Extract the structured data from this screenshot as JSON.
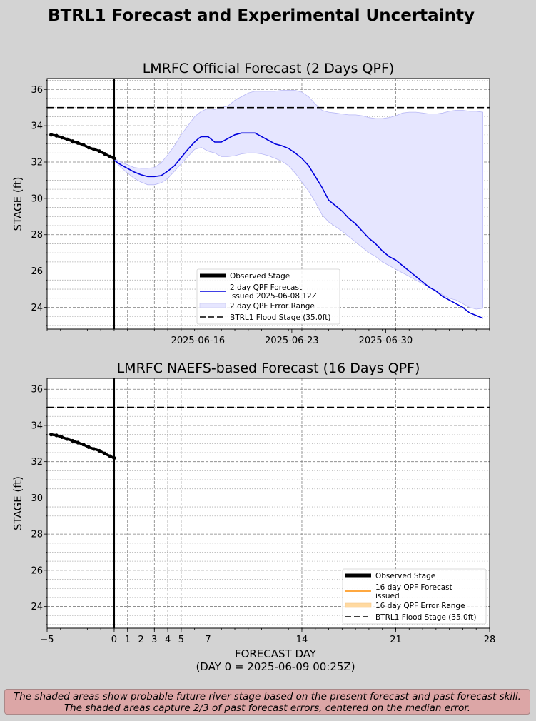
{
  "figure": {
    "title": "BTRL1 Forecast and Experimental Uncertainty",
    "footer_line1": "The shaded areas show probable future river stage based on the present forecast and past forecast skill.",
    "footer_line2": "The shaded areas capture 2/3 of past forecast errors, centered on the median error."
  },
  "colors": {
    "background": "#d3d3d3",
    "observed": "#000000",
    "forecast_2day": "#0000dd",
    "band_2day": "#e6e6ff",
    "forecast_16day": "#ff8c00",
    "band_16day": "#ffd9a0",
    "flood": "#000000",
    "footer_bg": "#dca6a6"
  },
  "chart_data": [
    {
      "type": "line",
      "title": "LMRFC Official Forecast (2 Days QPF)",
      "xlabel": "",
      "ylabel": "STAGE (ft)",
      "xlim": [
        -5,
        28
      ],
      "ylim": [
        22.8,
        36.6
      ],
      "yticks": [
        24,
        26,
        28,
        30,
        32,
        34,
        36
      ],
      "xticks": [
        {
          "x": 6.25,
          "label": "2025-06-16"
        },
        {
          "x": 13.25,
          "label": "2025-06-23"
        },
        {
          "x": 20.25,
          "label": "2025-06-30"
        }
      ],
      "forecast_day_lines": [
        1,
        2,
        3,
        4,
        5,
        7,
        14,
        21
      ],
      "now_line": 0,
      "grid": true,
      "flood_stage": 35.0,
      "legend_position": "lower-center",
      "series": [
        {
          "name": "Observed Stage",
          "role": "observed",
          "x": [
            -4.7,
            -4.3,
            -3.9,
            -3.5,
            -3.1,
            -2.7,
            -2.3,
            -1.9,
            -1.5,
            -1.1,
            -0.7,
            -0.3,
            0
          ],
          "y": [
            33.5,
            33.45,
            33.35,
            33.25,
            33.15,
            33.05,
            32.95,
            32.8,
            32.7,
            32.6,
            32.45,
            32.3,
            32.2
          ]
        },
        {
          "name": "2 day QPF Forecast",
          "name_line2": "issued 2025-06-08 12Z",
          "role": "forecast",
          "x": [
            0,
            0.5,
            1,
            1.5,
            2,
            2.5,
            3,
            3.5,
            4,
            4.5,
            5,
            5.5,
            6,
            6.3,
            6.5,
            7,
            7.5,
            8,
            8.5,
            9,
            9.5,
            10,
            10.5,
            11,
            11.5,
            12,
            12.5,
            13,
            13.5,
            14,
            14.5,
            15,
            15.5,
            16,
            16.5,
            17,
            17.5,
            18,
            18.5,
            19,
            19.5,
            20,
            20.5,
            21,
            21.5,
            22,
            22.5,
            23,
            23.5,
            24,
            24.5,
            25,
            25.5,
            26,
            26.5,
            27,
            27.5
          ],
          "y": [
            32.1,
            31.85,
            31.65,
            31.45,
            31.3,
            31.2,
            31.2,
            31.25,
            31.5,
            31.8,
            32.25,
            32.7,
            33.1,
            33.3,
            33.4,
            33.4,
            33.1,
            33.1,
            33.3,
            33.5,
            33.6,
            33.6,
            33.6,
            33.4,
            33.2,
            33.0,
            32.9,
            32.75,
            32.5,
            32.2,
            31.8,
            31.2,
            30.6,
            29.9,
            29.6,
            29.3,
            28.9,
            28.6,
            28.2,
            27.8,
            27.5,
            27.1,
            26.8,
            26.6,
            26.3,
            26.0,
            25.7,
            25.4,
            25.1,
            24.9,
            24.6,
            24.4,
            24.2,
            24.0,
            23.7,
            23.55,
            23.4
          ]
        },
        {
          "name": "2 day QPF Error Range",
          "role": "band",
          "x": [
            0,
            0.5,
            1,
            1.5,
            2,
            2.5,
            3,
            3.5,
            4,
            4.5,
            5,
            5.5,
            6,
            6.5,
            7,
            7.5,
            8,
            8.5,
            9,
            9.5,
            10,
            10.5,
            11,
            11.5,
            12,
            12.5,
            13,
            13.5,
            14,
            14.5,
            15,
            15.5,
            16,
            16.5,
            17,
            17.5,
            18,
            18.5,
            19,
            19.5,
            20,
            20.5,
            21,
            21.5,
            22,
            22.5,
            23,
            23.5,
            24,
            24.5,
            25,
            25.5,
            26,
            26.5,
            27,
            27.5
          ],
          "y_low": [
            32.1,
            31.7,
            31.4,
            31.1,
            30.9,
            30.75,
            30.75,
            30.85,
            31.1,
            31.5,
            31.9,
            32.3,
            32.7,
            32.8,
            32.6,
            32.5,
            32.3,
            32.3,
            32.35,
            32.45,
            32.5,
            32.5,
            32.45,
            32.35,
            32.2,
            32.05,
            31.8,
            31.4,
            30.9,
            30.4,
            29.8,
            29.1,
            28.7,
            28.45,
            28.2,
            27.9,
            27.6,
            27.3,
            27.0,
            26.8,
            26.5,
            26.3,
            26.1,
            25.9,
            25.7,
            25.5,
            25.3,
            25.1,
            24.9,
            24.7,
            24.5,
            24.4,
            24.2,
            24.0,
            23.9,
            23.95
          ],
          "y_high": [
            32.2,
            32.0,
            31.85,
            31.7,
            31.65,
            31.65,
            31.7,
            31.95,
            32.4,
            32.9,
            33.5,
            34.0,
            34.5,
            34.8,
            34.95,
            34.9,
            35.0,
            35.1,
            35.4,
            35.6,
            35.8,
            35.9,
            35.9,
            35.9,
            35.9,
            35.95,
            35.95,
            35.95,
            35.85,
            35.6,
            35.2,
            34.85,
            34.75,
            34.7,
            34.65,
            34.6,
            34.6,
            34.55,
            34.45,
            34.4,
            34.4,
            34.45,
            34.55,
            34.7,
            34.75,
            34.75,
            34.7,
            34.65,
            34.65,
            34.7,
            34.8,
            34.85,
            34.85,
            34.8,
            34.8,
            34.75
          ]
        },
        {
          "name": "BTRL1 Flood Stage (35.0ft)",
          "role": "flood"
        }
      ]
    },
    {
      "type": "line",
      "title": "LMRFC NAEFS-based Forecast (16 Days QPF)",
      "xlabel": "FORECAST DAY",
      "xlabel_line2": "(DAY 0 = 2025-06-09 00:25Z)",
      "ylabel": "STAGE (ft)",
      "xlim": [
        -5,
        28
      ],
      "ylim": [
        22.8,
        36.6
      ],
      "yticks": [
        24,
        26,
        28,
        30,
        32,
        34,
        36
      ],
      "xticks": [
        {
          "x": -5,
          "label": "−5"
        },
        {
          "x": 0,
          "label": "0"
        },
        {
          "x": 1,
          "label": "1"
        },
        {
          "x": 2,
          "label": "2"
        },
        {
          "x": 3,
          "label": "3"
        },
        {
          "x": 4,
          "label": "4"
        },
        {
          "x": 5,
          "label": "5"
        },
        {
          "x": 7,
          "label": "7"
        },
        {
          "x": 14,
          "label": "14"
        },
        {
          "x": 21,
          "label": "21"
        },
        {
          "x": 28,
          "label": "28"
        }
      ],
      "forecast_day_lines": [
        1,
        2,
        3,
        4,
        5,
        7,
        14,
        21
      ],
      "now_line": 0,
      "grid": true,
      "flood_stage": 35.0,
      "legend_position": "lower-right",
      "series": [
        {
          "name": "Observed Stage",
          "role": "observed",
          "x": [
            -4.7,
            -4.3,
            -3.9,
            -3.5,
            -3.1,
            -2.7,
            -2.3,
            -1.9,
            -1.5,
            -1.1,
            -0.7,
            -0.3,
            0
          ],
          "y": [
            33.5,
            33.45,
            33.35,
            33.25,
            33.15,
            33.05,
            32.95,
            32.8,
            32.7,
            32.6,
            32.45,
            32.3,
            32.2
          ]
        },
        {
          "name": "16 day QPF Forecast",
          "name_line2": "issued",
          "role": "forecast",
          "x": [],
          "y": []
        },
        {
          "name": "16 day QPF Error Range",
          "role": "band",
          "x": [],
          "y_low": [],
          "y_high": []
        },
        {
          "name": "BTRL1 Flood Stage (35.0ft)",
          "role": "flood"
        }
      ]
    }
  ]
}
